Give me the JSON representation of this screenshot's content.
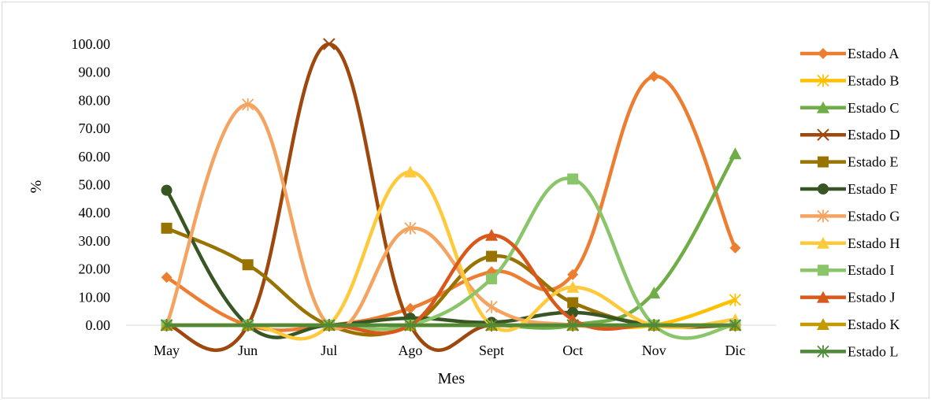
{
  "chart_data": {
    "type": "line",
    "title": "",
    "xlabel": "Mes",
    "ylabel": "%",
    "categories": [
      "May",
      "Jun",
      "Jul",
      "Ago",
      "Sept",
      "Oct",
      "Nov",
      "Dic"
    ],
    "ylim": [
      0,
      100
    ],
    "yticks": [
      "0.00",
      "10.00",
      "20.00",
      "30.00",
      "40.00",
      "50.00",
      "60.00",
      "70.00",
      "80.00",
      "90.00",
      "100.00"
    ],
    "grid": "none",
    "legend_position": "right",
    "series": [
      {
        "name": "Estado A",
        "color": "#ED7D31",
        "marker": "diamond",
        "values": [
          17,
          0,
          0,
          6,
          19,
          18,
          88.5,
          27.5
        ]
      },
      {
        "name": "Estado B",
        "color": "#FFC000",
        "marker": "star",
        "values": [
          0,
          0,
          0,
          0,
          0,
          0,
          0,
          9
        ]
      },
      {
        "name": "Estado C",
        "color": "#70AD47",
        "marker": "triangle",
        "values": [
          0,
          0,
          0,
          0,
          0,
          0,
          11.5,
          61
        ]
      },
      {
        "name": "Estado D",
        "color": "#9E480E",
        "marker": "x",
        "values": [
          0,
          0,
          100,
          0,
          0,
          0,
          0,
          0
        ]
      },
      {
        "name": "Estado E",
        "color": "#997300",
        "marker": "square",
        "values": [
          34.5,
          21.5,
          0,
          0,
          24.5,
          8,
          0,
          0
        ]
      },
      {
        "name": "Estado F",
        "color": "#375623",
        "marker": "circle",
        "values": [
          48,
          0,
          0,
          2.5,
          1,
          4.5,
          0,
          0
        ]
      },
      {
        "name": "Estado G",
        "color": "#F4A460",
        "marker": "asterisk",
        "values": [
          0,
          78.5,
          0,
          34.5,
          6.5,
          0,
          0,
          0
        ]
      },
      {
        "name": "Estado H",
        "color": "#FFC93C",
        "marker": "triangle",
        "values": [
          0,
          0,
          0,
          54.5,
          0,
          13.5,
          0,
          2
        ]
      },
      {
        "name": "Estado I",
        "color": "#8BC56A",
        "marker": "square",
        "values": [
          0,
          0,
          0,
          0,
          16.5,
          52,
          0,
          0
        ]
      },
      {
        "name": "Estado J",
        "color": "#D9581C",
        "marker": "triangle",
        "values": [
          0,
          0,
          0,
          0,
          32,
          2,
          0,
          0
        ]
      },
      {
        "name": "Estado K",
        "color": "#C49A00",
        "marker": "triangle",
        "values": [
          0,
          0,
          0,
          0,
          0,
          0,
          0,
          0
        ]
      },
      {
        "name": "Estado L",
        "color": "#4E8A3A",
        "marker": "asterisk",
        "values": [
          0,
          0,
          0,
          0,
          0,
          0,
          0,
          0
        ]
      }
    ]
  }
}
